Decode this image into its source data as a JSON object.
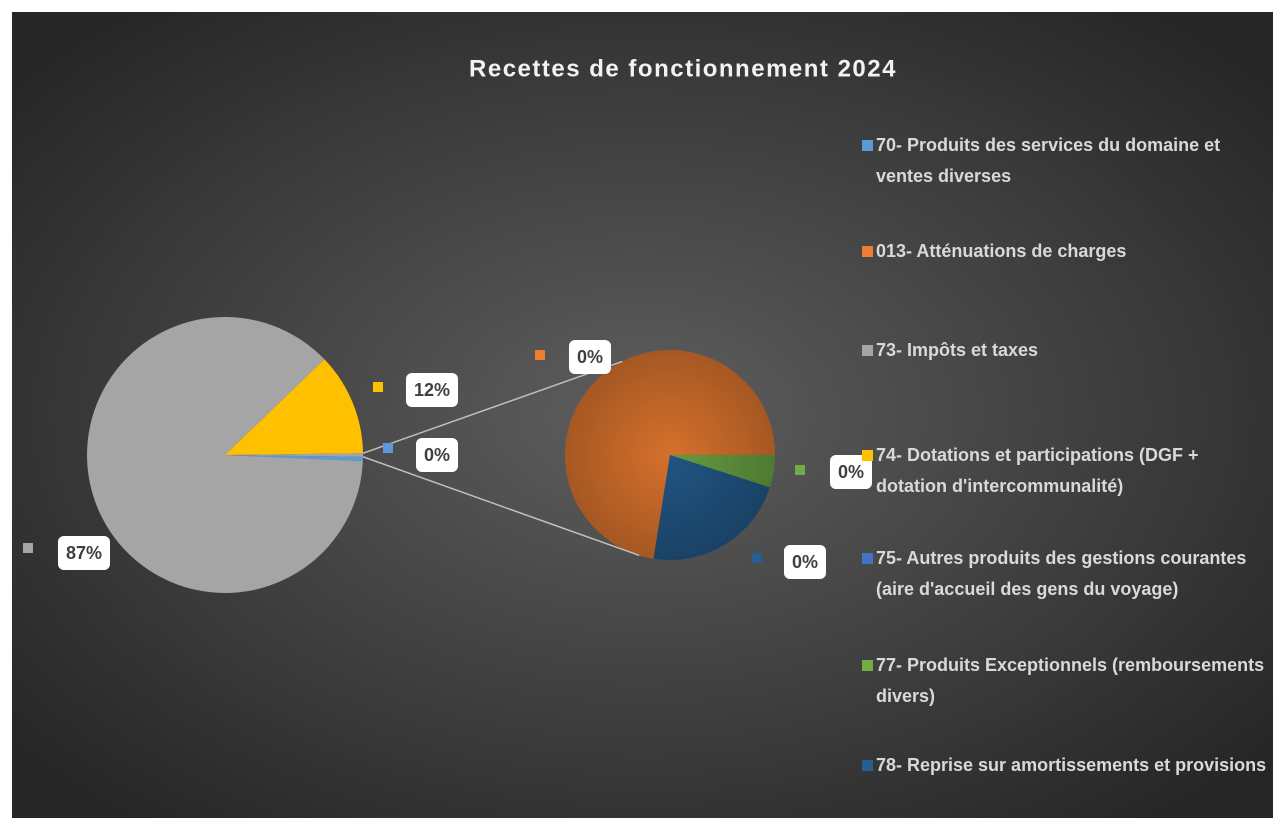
{
  "chart_data": {
    "type": "pie-of-pie",
    "title": "Recettes de fonctionnement 2024",
    "categories": [
      "70- Produits des services du domaine et ventes diverses",
      "013- Atténuations de charges",
      "73- Impôts et taxes",
      "74- Dotations et participations (DGF + dotation d'intercommunalité)",
      "75- Autres produits des gestions courantes (aire d'accueil des gens du voyage)",
      "77- Produits Exceptionnels (remboursements divers)",
      "78- Reprise sur amortissements et provisions"
    ],
    "values": [
      0.5,
      0.29,
      87.1,
      12.0,
      0,
      0.02,
      0.09
    ],
    "value_labels": [
      "0%",
      "0%",
      "87%",
      "12%",
      null,
      "0%",
      "0%"
    ],
    "colors": [
      "#5b9bd5",
      "#ed7d31",
      "#a5a5a5",
      "#ffc000",
      "#4472c4",
      "#70ad47",
      "#255e91"
    ],
    "split_below": 0.4,
    "legend": "right"
  }
}
